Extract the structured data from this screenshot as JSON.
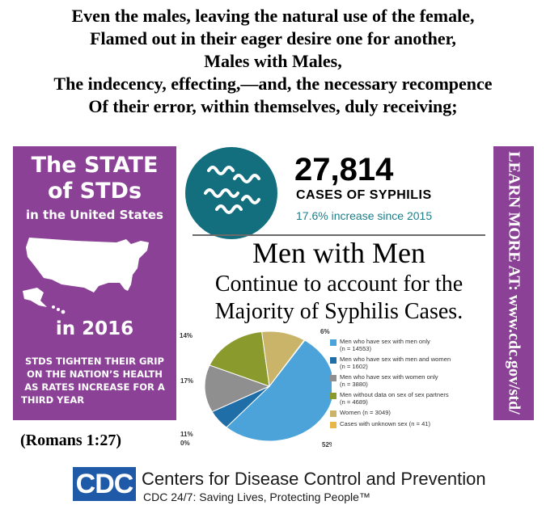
{
  "verse": {
    "lines": [
      "Even the males, leaving the natural use of the female,",
      "Flamed out in their eager desire one for another,",
      "Males with Males,",
      "The indecency, effecting,—and, the necessary recompence",
      "Of their error, within themselves, duly receiving;"
    ],
    "reference": "(Romans 1:27)"
  },
  "left_panel": {
    "title_the": "The",
    "title_state": "STATE",
    "title_of_stds": "of STDs",
    "subtitle": "in the United States",
    "year": "in 2016",
    "tagline": [
      "STDS TIGHTEN THEIR GRIP",
      "ON THE NATION’S HEALTH",
      "AS RATES INCREASE FOR A",
      "THIRD YEAR"
    ],
    "color": "#8a4196"
  },
  "right_panel": {
    "text": "LEARN MORE AT: www.cdc.gov/std/"
  },
  "stat": {
    "number": "27,814",
    "label": "CASES OF SYPHILIS",
    "increase": "17.6% increase since 2015",
    "icon": "syphilis-bacteria-icon",
    "icon_color": "#136f7d",
    "increase_color": "#1b7f8c"
  },
  "headline": {
    "line1": "Men with Men",
    "line2": "Continue to account for the",
    "line3": "Majority of Syphilis Cases."
  },
  "chart_data": {
    "type": "pie",
    "title": "",
    "slices": [
      {
        "label": "Men who have sex with men only",
        "count_label": "(n = 14553)",
        "value": 14553,
        "pct_label": "52%",
        "color": "#4ca3d9"
      },
      {
        "label": "Men who have sex with men and women",
        "count_label": "(n = 1602)",
        "value": 1602,
        "pct_label": "6%",
        "color": "#1f6ea7"
      },
      {
        "label": "Men who have sex with women only",
        "count_label": "(n = 3880)",
        "value": 3880,
        "pct_label": "14%",
        "color": "#8f8f8f"
      },
      {
        "label": "Men without data on sex of sex partners",
        "count_label": "(n = 4689)",
        "value": 4689,
        "pct_label": "17%",
        "color": "#8b9a2d"
      },
      {
        "label": "Women (n = 3049)",
        "count_label": "",
        "value": 3049,
        "pct_label": "11%",
        "color": "#c9b46a"
      },
      {
        "label": "Cases with unknown sex (n = 41)",
        "count_label": "",
        "value": 41,
        "pct_label": "0%",
        "color": "#e8b74a"
      }
    ],
    "legend_position": "right"
  },
  "cdc": {
    "logo_text": "CDC",
    "name": "Centers for Disease Control and Prevention",
    "tagline": "CDC 24/7: Saving Lives, Protecting People™",
    "brand_color": "#1f5aa8"
  }
}
